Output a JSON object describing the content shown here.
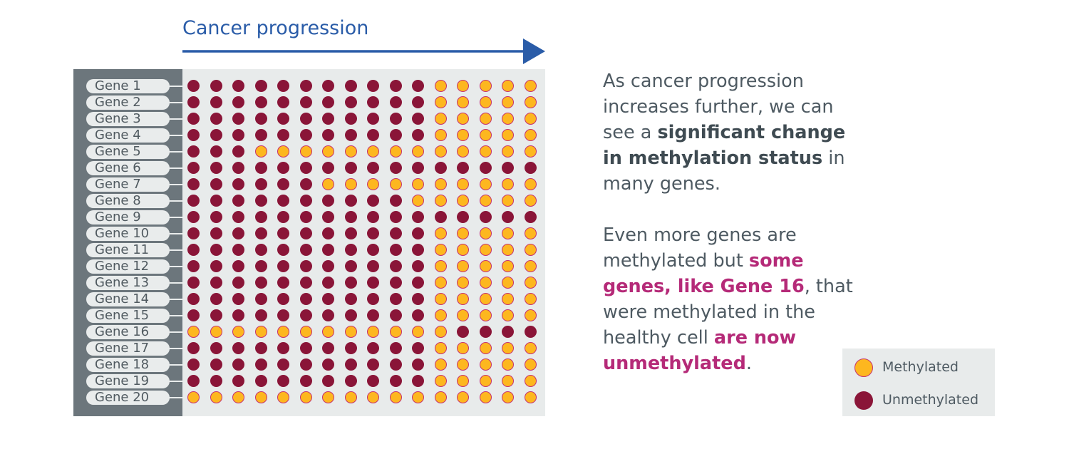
{
  "title": "Cancer progression",
  "genes": [
    "Gene 1",
    "Gene 2",
    "Gene 3",
    "Gene 4",
    "Gene 5",
    "Gene 6",
    "Gene 7",
    "Gene 8",
    "Gene 9",
    "Gene 10",
    "Gene 11",
    "Gene 12",
    "Gene 13",
    "Gene 14",
    "Gene 15",
    "Gene 16",
    "Gene 17",
    "Gene 18",
    "Gene 19",
    "Gene 20"
  ],
  "grid": [
    "UUUUUUUUUUUMMMMM",
    "UUUUUUUUUUUMMMMM",
    "UUUUUUUUUUUMMMMM",
    "UUUUUUUUUUUMMMMM",
    "UUUMMMMMMMMMMMMM",
    "UUUUUUUUUUUUUUUU",
    "UUUUUUMMMMMMMMMM",
    "UUUUUUUUUUMMMMMM",
    "UUUUUUUUUUUUUUUU",
    "UUUUUUUUUUUMMMMM",
    "UUUUUUUUUUUMMMMM",
    "UUUUUUUUUUUMMMMM",
    "UUUUUUUUUUUMMMMM",
    "UUUUUUUUUUUMMMMM",
    "UUUUUUUUUUUMMMMM",
    "MMMMMMMMMMMMUUUU",
    "UUUUUUUUUUUMMMMM",
    "UUUUUUUUUUUMMMMM",
    "UUUUUUUUUUUMMMMM",
    "MMMMMMMMMMMMMMMM"
  ],
  "text": {
    "p1_a": "As cancer progression increases further, we can see a ",
    "p1_b": "significant change in methylation status",
    "p1_c": " in many genes.",
    "p2_a": "Even more genes are methylated but ",
    "p2_b": "some genes, like Gene 16",
    "p2_c": ", that were methylated in the healthy cell ",
    "p2_d": "are now unmethylated",
    "p2_e": "."
  },
  "legend": {
    "methylated": "Methylated",
    "unmethylated": "Unmethylated"
  },
  "colors": {
    "methylated_fill": "#fdb71f",
    "methylated_border": "#c5326f",
    "unmethylated": "#8a1538",
    "arrow": "#2a5ca8",
    "highlight": "#b52a78"
  }
}
